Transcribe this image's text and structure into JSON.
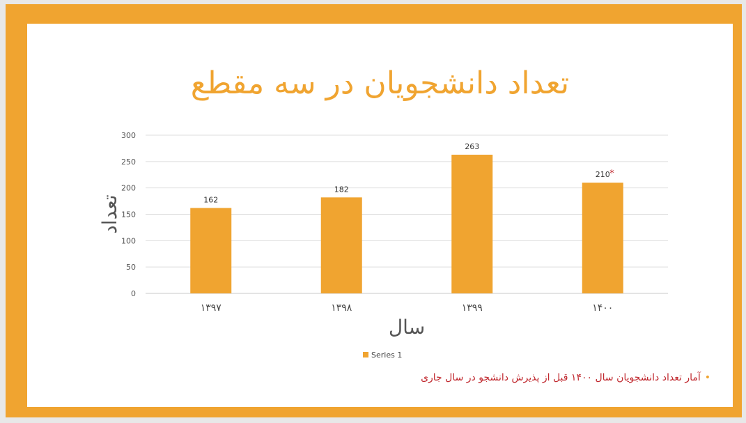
{
  "slide": {
    "frame_color": "#f0a430",
    "note": "آمار تعداد دانشجویان سال ۱۴۰۰ قبل از پذیرش دانشجو در سال جاری",
    "note_color": "#c0282e",
    "bullet": "•"
  },
  "chart_data": {
    "type": "bar",
    "title": "تعداد دانشجویان در سه مقطع",
    "xlabel": "سال",
    "ylabel": "تعداد",
    "categories": [
      "۱۳۹۷",
      "۱۳۹۸",
      "۱۳۹۹",
      "۱۴۰۰"
    ],
    "series": [
      {
        "name": "Series 1",
        "color": "#f0a430",
        "values": [
          162,
          182,
          263,
          210
        ],
        "data_labels": [
          "162",
          "182",
          "263",
          "210"
        ]
      }
    ],
    "annotations": [
      {
        "category_index": 3,
        "text": "*",
        "color": "#c0282e"
      }
    ],
    "ylim": [
      0,
      300
    ],
    "yticks": [
      0,
      50,
      100,
      150,
      200,
      250,
      300
    ],
    "grid": true,
    "legend": "bottom"
  }
}
